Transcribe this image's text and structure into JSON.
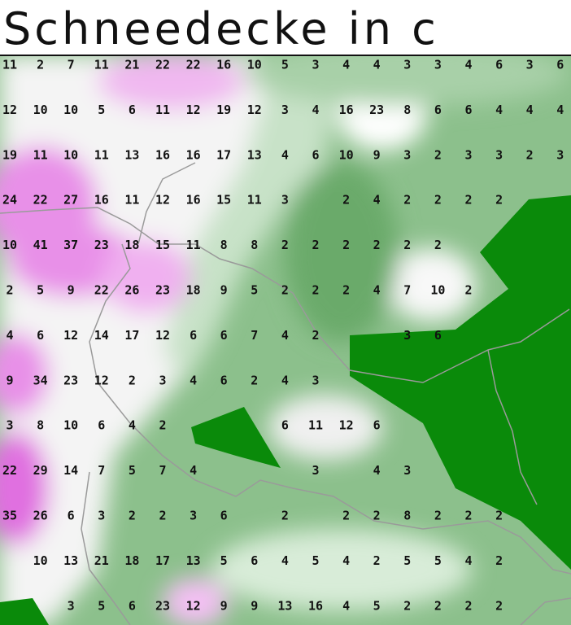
{
  "title": "Schneedecke in c",
  "grid": [
    [
      11,
      2,
      7,
      11,
      21,
      22,
      22,
      16,
      10,
      5,
      3,
      4,
      4,
      3,
      3,
      4,
      6,
      3,
      6
    ],
    [
      12,
      10,
      10,
      5,
      6,
      11,
      12,
      19,
      12,
      3,
      4,
      16,
      23,
      8,
      6,
      6,
      4,
      4,
      4
    ],
    [
      19,
      11,
      10,
      11,
      13,
      16,
      16,
      17,
      13,
      4,
      6,
      10,
      9,
      3,
      2,
      3,
      3,
      2,
      3
    ],
    [
      24,
      22,
      27,
      16,
      11,
      12,
      16,
      15,
      11,
      3,
      null,
      2,
      4,
      2,
      2,
      2,
      2,
      null,
      null
    ],
    [
      10,
      41,
      37,
      23,
      18,
      15,
      11,
      8,
      8,
      2,
      2,
      2,
      2,
      2,
      2,
      null,
      null,
      null,
      null
    ],
    [
      2,
      5,
      9,
      22,
      26,
      23,
      18,
      9,
      5,
      2,
      2,
      2,
      4,
      7,
      10,
      2,
      null,
      null,
      null
    ],
    [
      4,
      6,
      12,
      14,
      17,
      12,
      6,
      6,
      7,
      4,
      2,
      null,
      null,
      3,
      6,
      null,
      null,
      null,
      null
    ],
    [
      9,
      34,
      23,
      12,
      2,
      3,
      4,
      6,
      2,
      4,
      3,
      null,
      null,
      null,
      null,
      null,
      null,
      null,
      null
    ],
    [
      3,
      8,
      10,
      6,
      4,
      2,
      null,
      null,
      null,
      6,
      11,
      12,
      6,
      null,
      null,
      null,
      null,
      null,
      null
    ],
    [
      22,
      29,
      14,
      7,
      5,
      7,
      4,
      null,
      null,
      null,
      3,
      null,
      4,
      3,
      null,
      null,
      null,
      null,
      null
    ],
    [
      35,
      26,
      6,
      3,
      2,
      2,
      3,
      6,
      null,
      2,
      null,
      2,
      2,
      8,
      2,
      2,
      2,
      null,
      null
    ],
    [
      null,
      10,
      13,
      21,
      18,
      17,
      13,
      5,
      6,
      4,
      5,
      4,
      2,
      5,
      5,
      4,
      2,
      null,
      null
    ],
    [
      null,
      null,
      3,
      5,
      6,
      23,
      12,
      9,
      9,
      13,
      16,
      4,
      5,
      2,
      2,
      2,
      2,
      null,
      null
    ]
  ]
}
